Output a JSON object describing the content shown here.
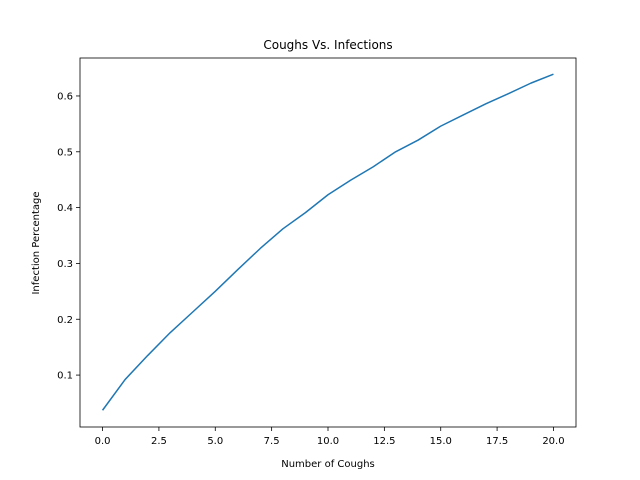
{
  "chart_data": {
    "type": "line",
    "title": "Coughs Vs. Infections",
    "xlabel": "Number of Coughs",
    "ylabel": "Infection Percentage",
    "xlim": [
      -1.0,
      21.0
    ],
    "ylim": [
      0.007,
      0.668
    ],
    "xticks": [
      0.0,
      2.5,
      5.0,
      7.5,
      10.0,
      12.5,
      15.0,
      17.5,
      20.0
    ],
    "xtick_labels": [
      "0.0",
      "2.5",
      "5.0",
      "7.5",
      "10.0",
      "12.5",
      "15.0",
      "17.5",
      "20.0"
    ],
    "yticks": [
      0.1,
      0.2,
      0.3,
      0.4,
      0.5,
      0.6
    ],
    "ytick_labels": [
      "0.1",
      "0.2",
      "0.3",
      "0.4",
      "0.5",
      "0.6"
    ],
    "grid": false,
    "series": [
      {
        "color": "#1f77b4",
        "x": [
          0,
          1,
          2,
          3,
          4,
          5,
          6,
          7,
          8,
          9,
          10,
          11,
          12,
          13,
          14,
          15,
          16,
          17,
          18,
          19,
          20
        ],
        "y": [
          0.037,
          0.092,
          0.135,
          0.176,
          0.213,
          0.25,
          0.289,
          0.327,
          0.362,
          0.391,
          0.423,
          0.449,
          0.473,
          0.5,
          0.521,
          0.546,
          0.566,
          0.586,
          0.604,
          0.623,
          0.639
        ]
      }
    ]
  }
}
